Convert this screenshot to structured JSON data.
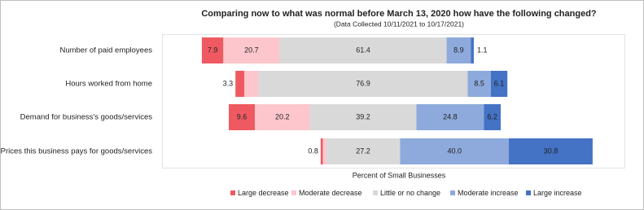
{
  "chart_data": {
    "type": "diverging-bar",
    "title": "Comparing now to what was normal before March 13, 2020 how have the following changed?",
    "subtitle": "(Data Collected 10/11/2021 to 10/17/2021)",
    "x_label": "Percent of Small Businesses",
    "categories": [
      "Number of paid employees",
      "Hours worked from home",
      "Demand for business's goods/services",
      "Prices this business pays for goods/services"
    ],
    "series": [
      {
        "name": "Large decrease",
        "color": "#ef5a62",
        "values": [
          7.9,
          3.3,
          9.6,
          0.8
        ]
      },
      {
        "name": "Moderate decrease",
        "color": "#fcc6cc",
        "values": [
          20.7,
          5.2,
          20.2,
          1.2
        ]
      },
      {
        "name": "Little or no change",
        "color": "#d9d9d9",
        "values": [
          61.4,
          76.9,
          39.2,
          27.2
        ]
      },
      {
        "name": "Moderate increase",
        "color": "#8eaadc",
        "values": [
          8.9,
          8.5,
          24.8,
          40
        ],
        "value_labels": [
          "8.9",
          "8.5",
          "24.8",
          "40.0"
        ]
      },
      {
        "name": "Large increase",
        "color": "#4472c4",
        "values": [
          1.1,
          6.1,
          6.2,
          30.8
        ]
      }
    ]
  }
}
